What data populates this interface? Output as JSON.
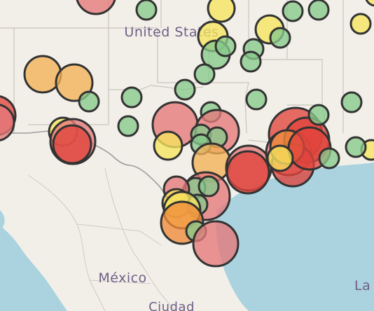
{
  "map": {
    "labels": {
      "country_us": "United States",
      "country_mexico": "México",
      "partial_bottom": "Ciudad",
      "partial_right": "La"
    },
    "colors": {
      "land": "#f2efe9",
      "water": "#aad3df",
      "border": "#9e9e9e",
      "state_line": "#c9c4bd",
      "label": "#6f5f86"
    },
    "marker_colors": {
      "green": "#86c98a",
      "yellow": "#f6e45e",
      "light_orange": "#f3b156",
      "orange": "#ef8a3a",
      "salmon": "#e6787a",
      "red": "#e0443c"
    },
    "markers": [
      {
        "c": "salmon"
      },
      {
        "c": "green"
      },
      {
        "c": "yellow"
      },
      {
        "c": "yellow"
      },
      {
        "c": "green"
      },
      {
        "c": "green"
      },
      {
        "c": "yellow"
      },
      {
        "c": "yellow"
      },
      {
        "c": "green"
      },
      {
        "c": "green"
      },
      {
        "c": "green"
      },
      {
        "c": "green"
      },
      {
        "c": "yellow"
      },
      {
        "c": "green"
      },
      {
        "c": "green"
      },
      {
        "c": "light_orange"
      },
      {
        "c": "light_orange"
      },
      {
        "c": "green"
      },
      {
        "c": "green"
      },
      {
        "c": "green"
      },
      {
        "c": "green"
      },
      {
        "c": "red"
      },
      {
        "c": "salmon"
      },
      {
        "c": "green"
      },
      {
        "c": "green"
      },
      {
        "c": "green"
      },
      {
        "c": "salmon"
      },
      {
        "c": "salmon"
      },
      {
        "c": "yellow"
      },
      {
        "c": "green"
      },
      {
        "c": "green"
      },
      {
        "c": "salmon"
      },
      {
        "c": "green"
      },
      {
        "c": "yellow"
      },
      {
        "c": "red"
      },
      {
        "c": "yellow"
      },
      {
        "c": "light_orange"
      },
      {
        "c": "green"
      },
      {
        "c": "salmon"
      },
      {
        "c": "red"
      },
      {
        "c": "red"
      },
      {
        "c": "salmon"
      },
      {
        "c": "red"
      },
      {
        "c": "red"
      },
      {
        "c": "orange"
      },
      {
        "c": "red"
      },
      {
        "c": "yellow"
      },
      {
        "c": "green"
      },
      {
        "c": "salmon"
      },
      {
        "c": "green"
      },
      {
        "c": "green"
      },
      {
        "c": "salmon"
      },
      {
        "c": "yellow"
      },
      {
        "c": "green"
      },
      {
        "c": "yellow"
      },
      {
        "c": "orange"
      },
      {
        "c": "green"
      },
      {
        "c": "salmon"
      },
      {
        "c": "green"
      }
    ]
  }
}
